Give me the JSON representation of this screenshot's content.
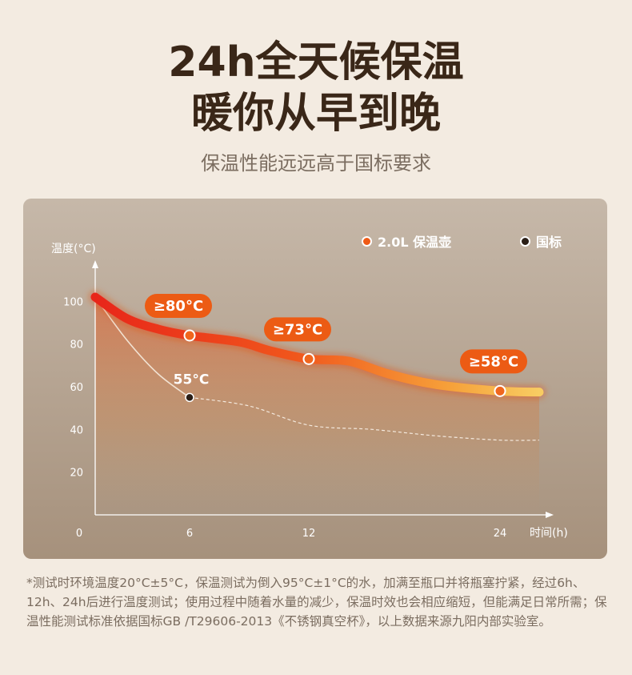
{
  "header": {
    "title_line1": "24h全天候保温",
    "title_line2": "暖你从早到晚",
    "subtitle": "保温性能远远高于国标要求"
  },
  "chart_data": {
    "type": "line",
    "ylabel": "温度(°C)",
    "xlabel": "时间(h)",
    "ylim": [
      0,
      120
    ],
    "y_ticks": [
      100,
      80,
      60,
      40,
      20
    ],
    "x_ticks": [
      0,
      6,
      12,
      24
    ],
    "legend_position": "top-right",
    "series": [
      {
        "name": "2.0L 保温壶",
        "color": "#ef5a16",
        "points": [
          [
            0,
            102
          ],
          [
            6,
            84
          ],
          [
            12,
            73
          ],
          [
            24,
            58
          ]
        ],
        "curve": [
          [
            0,
            102
          ],
          [
            2,
            92
          ],
          [
            4,
            87
          ],
          [
            6,
            84
          ],
          [
            8.5,
            81
          ],
          [
            10,
            77
          ],
          [
            12,
            73
          ],
          [
            14.5,
            72
          ],
          [
            17,
            66
          ],
          [
            20,
            61
          ],
          [
            24,
            58
          ],
          [
            26,
            57.5
          ]
        ],
        "labels": [
          {
            "x": 6,
            "y": 84,
            "text": "≥80°C"
          },
          {
            "x": 12,
            "y": 73,
            "text": "≥73°C"
          },
          {
            "x": 24,
            "y": 58,
            "text": "≥58°C"
          }
        ]
      },
      {
        "name": "国标",
        "color": "#2a1e16",
        "points": [
          [
            6,
            55
          ]
        ],
        "curve": [
          [
            0,
            102
          ],
          [
            2,
            82
          ],
          [
            4,
            66
          ],
          [
            6,
            55
          ],
          [
            9,
            51
          ],
          [
            12,
            42
          ],
          [
            16,
            40
          ],
          [
            20,
            37
          ],
          [
            24,
            35
          ],
          [
            26,
            35
          ]
        ],
        "labels": [
          {
            "x": 6,
            "y": 55,
            "text": "55°C"
          }
        ]
      }
    ]
  },
  "footnote": "*测试时环境温度20°C±5°C，保温测试为倒入95°C±1°C的水，加满至瓶口并将瓶塞拧紧，经过6h、12h、24h后进行温度测试；使用过程中随着水量的减少，保温时效也会相应缩短，但能满足日常所需；保温性能测试标准依据国标GB /T29606-2013《不锈钢真空杯》，以上数据来源九阳内部实验室。"
}
